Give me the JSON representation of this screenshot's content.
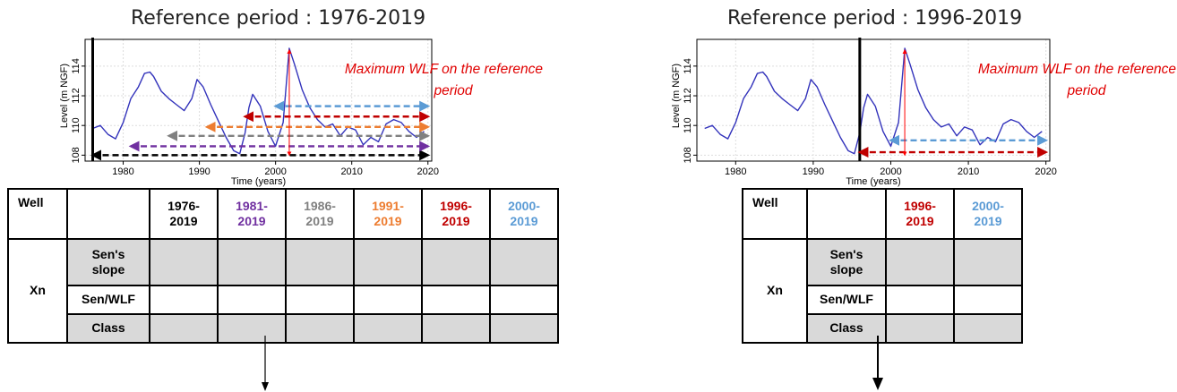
{
  "left": {
    "title": "Reference period : 1976-2019",
    "annotation_line1": "Maximum WLF on the reference",
    "annotation_line2": "period",
    "table": {
      "well_label": "Well",
      "periods": [
        {
          "label": "1976-\n2019",
          "color": "#000000"
        },
        {
          "label": "1981-\n2019",
          "color": "#7030a0"
        },
        {
          "label": "1986-\n2019",
          "color": "#808080"
        },
        {
          "label": "1991-\n2019",
          "color": "#ed7d31"
        },
        {
          "label": "1996-\n2019",
          "color": "#c00000"
        },
        {
          "label": "2000-\n2019",
          "color": "#5b9bd5"
        }
      ],
      "group_label": "Xn",
      "rows": [
        "Sen's\nslope",
        "Sen/WLF",
        "Class"
      ]
    }
  },
  "right": {
    "title": "Reference period : 1996-2019",
    "annotation_line1": "Maximum WLF on the reference",
    "annotation_line2": "period",
    "table": {
      "well_label": "Well",
      "periods": [
        {
          "label": "1996-\n2019",
          "color": "#c00000"
        },
        {
          "label": "2000-\n2019",
          "color": "#5b9bd5"
        }
      ],
      "group_label": "Xn",
      "rows": [
        "Sen's\nslope",
        "Sen/WLF",
        "Class"
      ]
    }
  },
  "chart_data": [
    {
      "type": "line",
      "xlabel": "Time (years)",
      "ylabel": "Level (m NGF)",
      "xlim": [
        1975,
        2020.5
      ],
      "ylim": [
        107.6,
        115.8
      ],
      "xticks": [
        1980,
        1990,
        2000,
        2010,
        2020
      ],
      "yticks": [
        108,
        110,
        112,
        114
      ],
      "grid": true,
      "series": [
        {
          "color": "#3333bb",
          "x": [
            1976,
            1977,
            1978,
            1979,
            1980,
            1981,
            1982,
            1982.8,
            1983.5,
            1984,
            1985,
            1986,
            1987,
            1988,
            1989,
            1989.7,
            1990.5,
            1991.5,
            1992.5,
            1993.5,
            1994.5,
            1995.3,
            1996,
            1996.5,
            1997,
            1998,
            1999,
            2000,
            2001,
            2001.8,
            2002.5,
            2003.5,
            2004.5,
            2005.5,
            2006.5,
            2007.5,
            2008.5,
            2009.5,
            2010.5,
            2011.5,
            2012.5,
            2013.5,
            2014.5,
            2015.5,
            2016.5,
            2017.5,
            2018.5,
            2019.5
          ],
          "y": [
            109.8,
            110.0,
            109.4,
            109.1,
            110.2,
            111.8,
            112.6,
            113.5,
            113.6,
            113.3,
            112.3,
            111.8,
            111.4,
            111.0,
            111.8,
            113.1,
            112.6,
            111.4,
            110.3,
            109.2,
            108.3,
            108.1,
            109.5,
            111.2,
            112.1,
            111.3,
            109.6,
            108.6,
            110.2,
            115.2,
            114.1,
            112.4,
            111.2,
            110.4,
            109.9,
            110.1,
            109.3,
            109.9,
            109.7,
            108.7,
            109.2,
            108.9,
            110.1,
            110.4,
            110.2,
            109.6,
            109.2,
            109.6
          ]
        }
      ]
    },
    {
      "type": "line",
      "xlabel": "Time (years)",
      "ylabel": "Level (m NGF)",
      "xlim": [
        1975,
        2020.5
      ],
      "ylim": [
        107.6,
        115.8
      ],
      "xticks": [
        1980,
        1990,
        2000,
        2010,
        2020
      ],
      "yticks": [
        108,
        110,
        112,
        114
      ],
      "grid": true,
      "series": [
        {
          "color": "#3333bb",
          "x": [
            1976,
            1977,
            1978,
            1979,
            1980,
            1981,
            1982,
            1982.8,
            1983.5,
            1984,
            1985,
            1986,
            1987,
            1988,
            1989,
            1989.7,
            1990.5,
            1991.5,
            1992.5,
            1993.5,
            1994.5,
            1995.3,
            1996,
            1996.5,
            1997,
            1998,
            1999,
            2000,
            2001,
            2001.8,
            2002.5,
            2003.5,
            2004.5,
            2005.5,
            2006.5,
            2007.5,
            2008.5,
            2009.5,
            2010.5,
            2011.5,
            2012.5,
            2013.5,
            2014.5,
            2015.5,
            2016.5,
            2017.5,
            2018.5,
            2019.5
          ],
          "y": [
            109.8,
            110.0,
            109.4,
            109.1,
            110.2,
            111.8,
            112.6,
            113.5,
            113.6,
            113.3,
            112.3,
            111.8,
            111.4,
            111.0,
            111.8,
            113.1,
            112.6,
            111.4,
            110.3,
            109.2,
            108.3,
            108.1,
            109.5,
            111.2,
            112.1,
            111.3,
            109.6,
            108.6,
            110.2,
            115.2,
            114.1,
            112.4,
            111.2,
            110.4,
            109.9,
            110.1,
            109.3,
            109.9,
            109.7,
            108.7,
            109.2,
            108.9,
            110.1,
            110.4,
            110.2,
            109.6,
            109.2,
            109.6
          ]
        }
      ]
    }
  ],
  "trend_arrows": {
    "left": [
      {
        "start": 1976,
        "end": 2020,
        "level": 108.0,
        "color": "#000000"
      },
      {
        "start": 1981,
        "end": 2020,
        "level": 108.6,
        "color": "#7030a0"
      },
      {
        "start": 1986,
        "end": 2020,
        "level": 109.3,
        "color": "#808080"
      },
      {
        "start": 1991,
        "end": 2020,
        "level": 109.9,
        "color": "#ed7d31"
      },
      {
        "start": 1996,
        "end": 2020,
        "level": 110.6,
        "color": "#c00000"
      },
      {
        "start": 2000,
        "end": 2020,
        "level": 111.3,
        "color": "#5b9bd5"
      }
    ],
    "right": [
      {
        "start": 1996,
        "end": 2020,
        "level": 108.2,
        "color": "#c00000"
      },
      {
        "start": 2000,
        "end": 2020,
        "level": 109.0,
        "color": "#5b9bd5"
      }
    ]
  },
  "reference_lines": {
    "left": 1976,
    "right": 1996
  },
  "max_marker": {
    "year": 2001.8,
    "value": 115.2,
    "bottom": 108.0,
    "color": "#ff0000"
  },
  "annotation_color": "#e00000"
}
